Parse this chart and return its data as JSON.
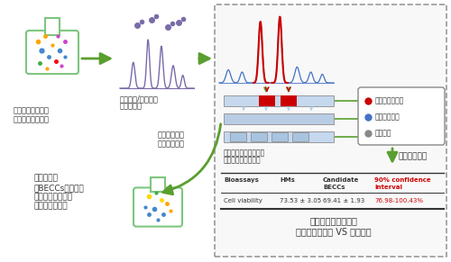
{
  "bg_color": "#ffffff",
  "flask1_label1": "中药成分复杂，有",
  "flask1_label2": "效成分群说不清？",
  "chrom_label1": "基于色谱/质谱进行",
  "chrom_label2": "全成分表征",
  "feedback_label1": "不等效则反馈",
  "feedback_label2": "重新选择筛选",
  "select_label1": "选择、在线制备候选等",
  "select_label2": "效成分群及剩余部分",
  "bioassay_label": "生物活性测试",
  "flask2_label1": "等效成分群",
  "flask2_label2": "（BECCs）：有限",
  "flask2_label3": "个数，结构明确，",
  "flask2_label4": "可表征复方疗效",
  "legend_items": [
    "候选等效成分群",
    "中药复方整体",
    "剩余部分"
  ],
  "legend_colors": [
    "#cc0000",
    "#4472c4",
    "#888888"
  ],
  "table_headers": [
    "Bioassays",
    "HMs",
    "Candidate\nBECCs",
    "90% confidence\ninterval"
  ],
  "table_row": [
    "Cell viability",
    "73.53 ± 3.05",
    "69.41 ± 1.93",
    "76.98-100.43%"
  ],
  "table_header_color": "#cc0000",
  "bottom_label1": "生物活性等效性评价",
  "bottom_label2": "候选等效成分群 VS 复方整体",
  "arrow_color": "#5a9e2f",
  "chrom_color": "#7b6baa",
  "red_color": "#cc0000",
  "blue_color": "#4472c4",
  "green_color": "#5a9e2f",
  "flask_edge_color": "#7dc67e"
}
